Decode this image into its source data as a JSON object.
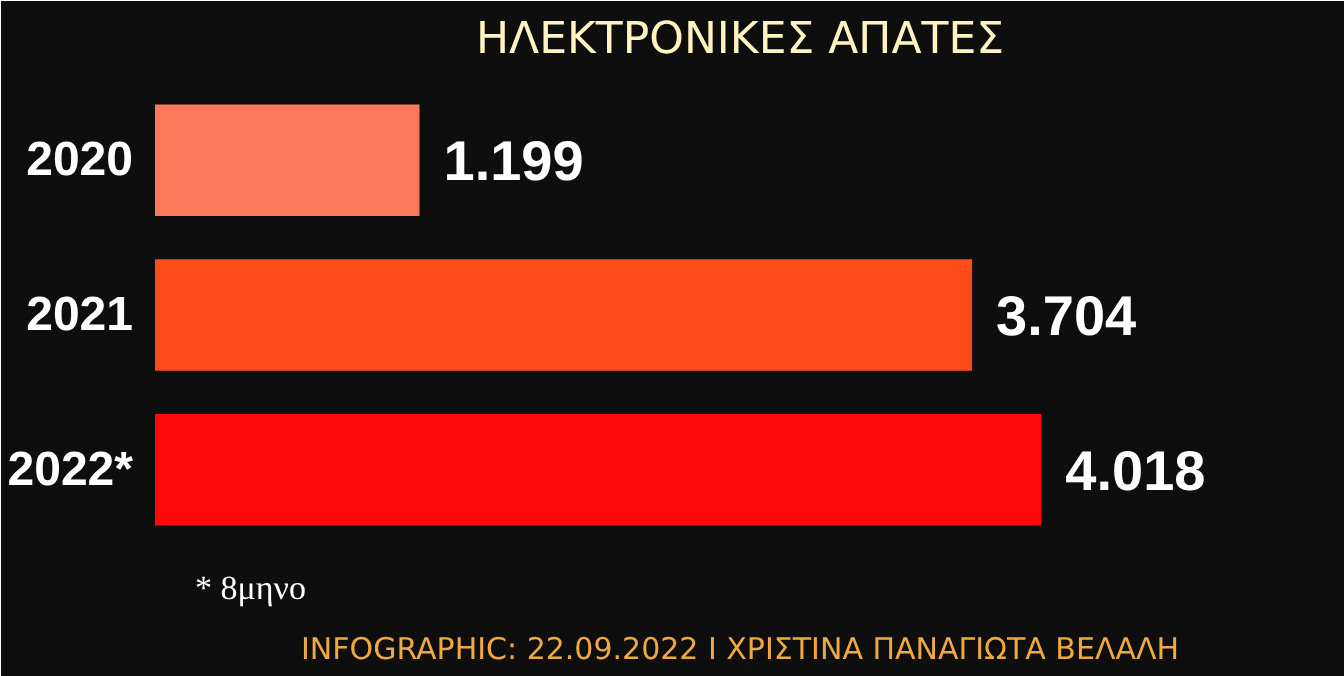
{
  "chart_data": {
    "type": "bar",
    "orientation": "horizontal",
    "title": "ΗΛΕΚΤΡΟΝΙΚΕΣ ΑΠΑΤΕΣ",
    "categories": [
      "2020",
      "2021",
      "2022*"
    ],
    "values": [
      1199,
      3704,
      4018
    ],
    "colors": [
      "#fa7a5a",
      "#ff4a1a",
      "#ff0a0a"
    ],
    "value_labels": [
      "1.199",
      "3.704",
      "4.018"
    ],
    "annotations": [
      "* 8μηνο",
      "INFOGRAPHIC: 22.09.2022 Ι ΧΡΙΣΤΙΝΑ ΠΑΝΑΓΙΩΤΑ ΒΕΛΑΛΗ"
    ],
    "grid": false
  }
}
